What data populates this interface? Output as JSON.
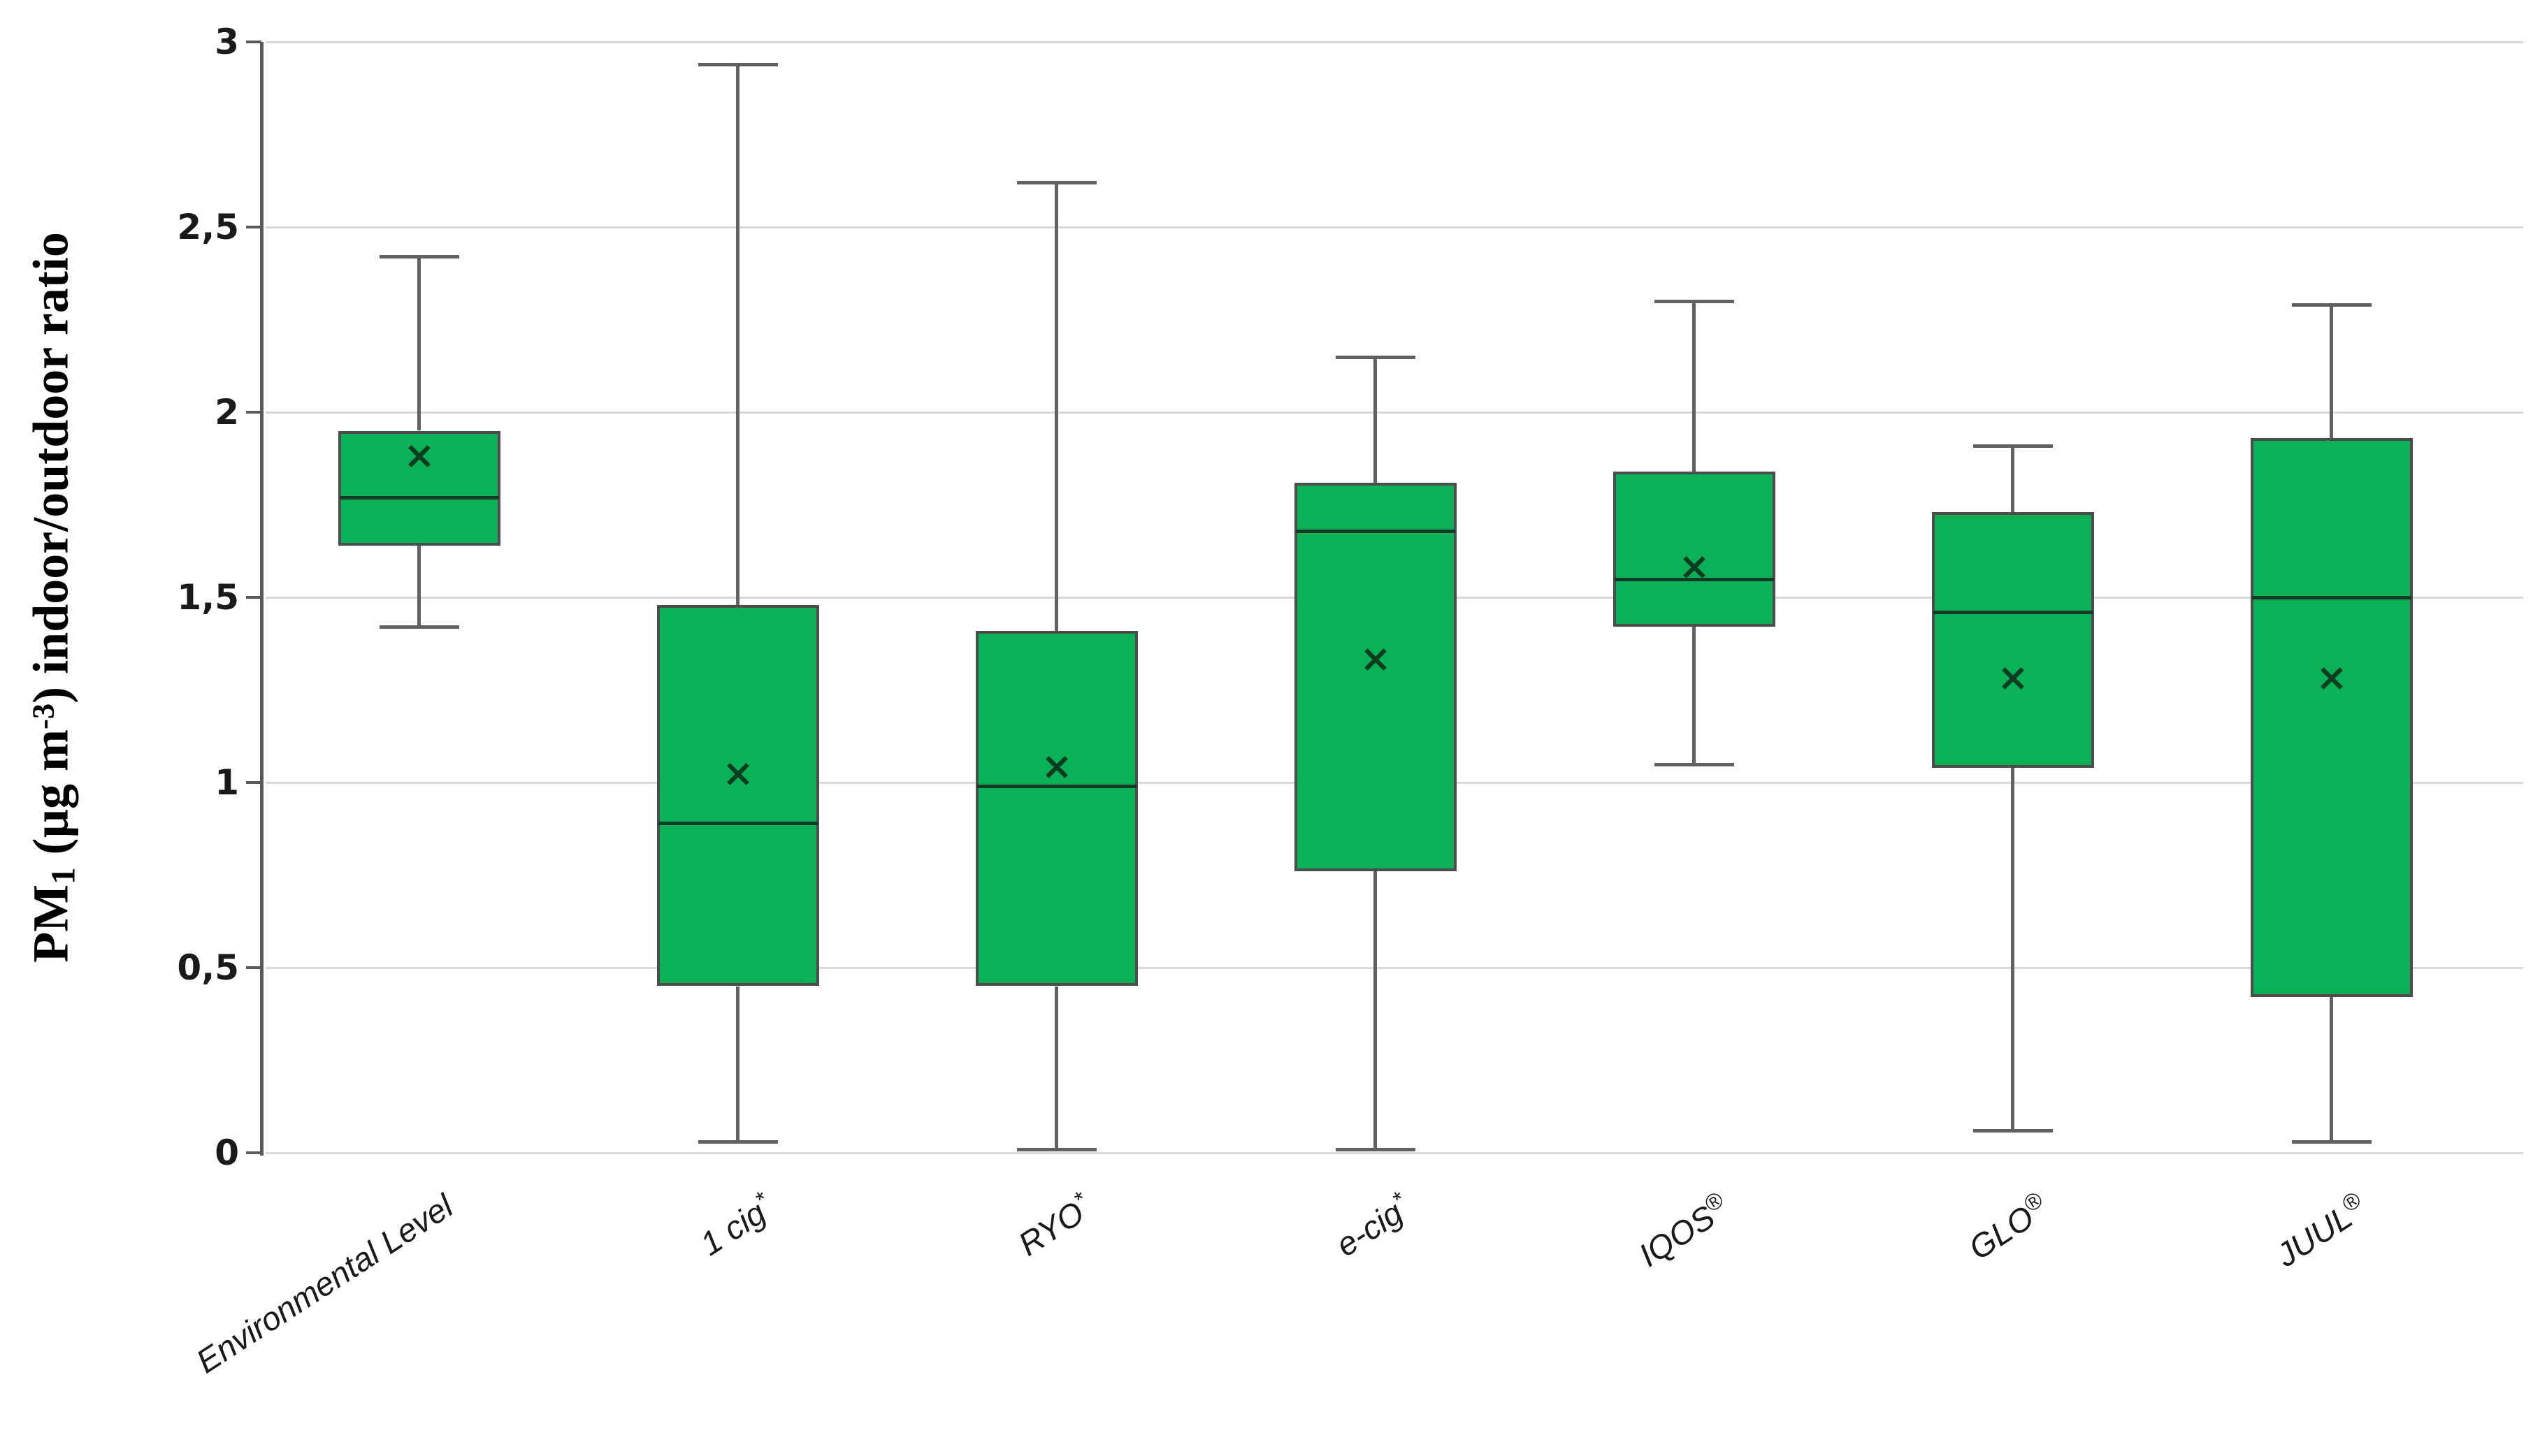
{
  "colors": {
    "box_fill": "#0ab156",
    "box_border": "#4d4d4d",
    "median_line": "#123a24",
    "mean_marker": "#0c3c20",
    "whisker": "#616161",
    "gridline": "#d9d9d9",
    "axis_line": "#595959",
    "text": "#1a1a1a"
  },
  "chart_data": {
    "type": "boxplot",
    "title": "",
    "xlabel": "",
    "ylabel": "PM1 (µg m-3) indoor/outdoor ratio",
    "ylabel_parts": {
      "prefix": "PM",
      "sub": "1",
      "mid": " (µg m",
      "sup": "-3",
      "suffix": ") indoor/outdoor ratio"
    },
    "ylim": [
      0,
      3
    ],
    "grid": true,
    "legend": "none",
    "mean_marker_glyph": "×",
    "y_ticks": [
      {
        "value": 0,
        "label": "0"
      },
      {
        "value": 0.5,
        "label": "0,5"
      },
      {
        "value": 1,
        "label": "1"
      },
      {
        "value": 1.5,
        "label": "1,5"
      },
      {
        "value": 2,
        "label": "2"
      },
      {
        "value": 2.5,
        "label": "2,5"
      },
      {
        "value": 3,
        "label": "3"
      }
    ],
    "categories": [
      {
        "label": "Environmental Level",
        "sup": "",
        "whisker_low": 1.42,
        "q1": 1.64,
        "median": 1.77,
        "q3": 1.95,
        "whisker_high": 2.42,
        "mean": 1.88
      },
      {
        "label": "1 cig",
        "sup": "*",
        "whisker_low": 0.03,
        "q1": 0.45,
        "median": 0.89,
        "q3": 1.48,
        "whisker_high": 2.94,
        "mean": 1.02
      },
      {
        "label": "RYO",
        "sup": "*",
        "whisker_low": 0.01,
        "q1": 0.45,
        "median": 0.99,
        "q3": 1.41,
        "whisker_high": 2.62,
        "mean": 1.04
      },
      {
        "label": "e-cig",
        "sup": "*",
        "whisker_low": 0.01,
        "q1": 0.76,
        "median": 1.68,
        "q3": 1.81,
        "whisker_high": 2.15,
        "mean": 1.33
      },
      {
        "label": "IQOS",
        "sup": "®",
        "whisker_low": 1.05,
        "q1": 1.42,
        "median": 1.55,
        "q3": 1.84,
        "whisker_high": 2.3,
        "mean": 1.58
      },
      {
        "label": "GLO",
        "sup": "®",
        "whisker_low": 0.06,
        "q1": 1.04,
        "median": 1.46,
        "q3": 1.73,
        "whisker_high": 1.91,
        "mean": 1.28
      },
      {
        "label": "JUUL",
        "sup": "®",
        "whisker_low": 0.03,
        "q1": 0.42,
        "median": 1.5,
        "q3": 1.93,
        "whisker_high": 2.29,
        "mean": 1.28
      }
    ]
  }
}
